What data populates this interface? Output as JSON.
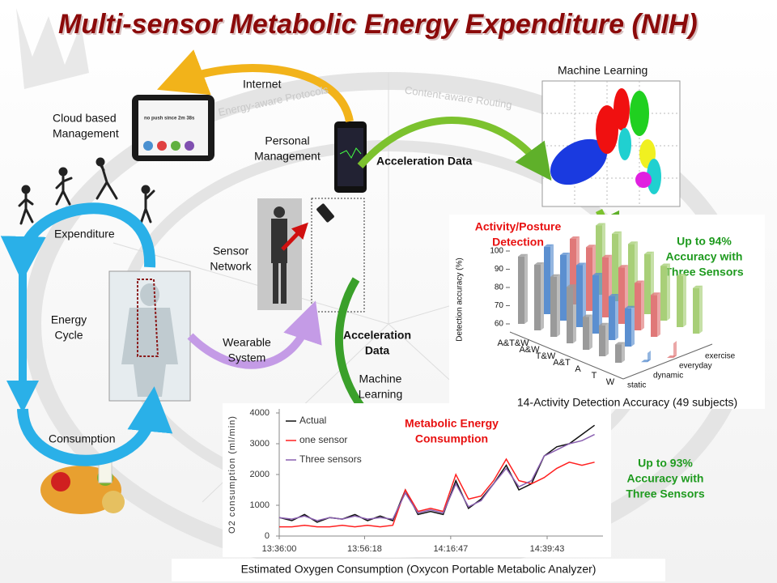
{
  "title": "Multi-sensor Metabolic Energy Expenditure (NIH)",
  "decor_texts": [
    "Energy-aware Protocols",
    "Content-aware Routing"
  ],
  "tablet_text": "no push since 2m 38s",
  "labels": [
    {
      "lines": [
        "Internet"
      ]
    },
    {
      "lines": [
        "Cloud based",
        "Management"
      ]
    },
    {
      "lines": [
        "Personal",
        "Management"
      ]
    },
    {
      "lines": [
        "Acceleration Data"
      ],
      "bold": true
    },
    {
      "lines": [
        "Machine Learning"
      ]
    },
    {
      "lines": [
        "Expenditure"
      ]
    },
    {
      "lines": [
        "Sensor",
        "Network"
      ]
    },
    {
      "lines": [
        "Energy",
        "Cycle"
      ]
    },
    {
      "lines": [
        "Wearable",
        "System"
      ]
    },
    {
      "lines": [
        "Acceleration",
        "Data"
      ],
      "bold": true
    },
    {
      "lines": [
        "Machine",
        "Learning"
      ]
    },
    {
      "lines": [
        "Consumption"
      ]
    },
    {
      "lines": [
        "Activity/Posture",
        "Detection"
      ],
      "bold": true,
      "color": "#e81010"
    },
    {
      "lines": [
        "Up to 94%",
        "Accuracy with",
        "Three Sensors"
      ],
      "bold": true,
      "color": "#1e9a1e"
    },
    {
      "lines": [
        "Metabolic Energy",
        "Consumption"
      ],
      "bold": true,
      "color": "#e81010"
    },
    {
      "lines": [
        "Up to 93%",
        "Accuracy with",
        "Three Sensors"
      ],
      "bold": true,
      "color": "#1e9a1e"
    },
    {
      "lines": [
        "Estimated Oxygen  Consumption (Oxycon  Portable  Metabolic Analyzer)"
      ]
    }
  ],
  "chart_data": [
    {
      "type": "bar3d",
      "title": "14-Activity Detection Accuracy (49 subjects)",
      "ylabel": "Detection accuracy (%)",
      "ylim": [
        60,
        100
      ],
      "yticks": [
        60,
        70,
        80,
        90,
        100
      ],
      "categories": [
        "A&T&W",
        "A&W",
        "T&W",
        "A&T",
        "A",
        "T",
        "W"
      ],
      "series": [
        {
          "name": "static",
          "color": "#9a9a9a",
          "values": [
            97,
            96,
            93,
            91,
            78,
            77,
            70
          ]
        },
        {
          "name": "dynamic",
          "color": "#5b8fd0",
          "values": [
            97,
            96,
            94,
            92,
            84,
            81,
            55
          ]
        },
        {
          "name": "everyday",
          "color": "#e07878",
          "values": [
            96,
            95,
            93,
            91,
            86,
            83,
            52
          ]
        },
        {
          "name": "exercise",
          "color": "#a8cf78",
          "values": [
            98,
            97,
            95,
            93,
            90,
            88,
            85
          ]
        }
      ]
    },
    {
      "type": "line",
      "ylabel": "O2 consumption (ml/min)",
      "ylim": [
        0,
        4000
      ],
      "yticks": [
        0,
        1000,
        2000,
        3000,
        4000
      ],
      "xlim": [
        "13:36:00",
        "14:53:00"
      ],
      "xticks": [
        "13:36:00",
        "13:56:18",
        "14:16:47",
        "14:39:43"
      ],
      "x": [
        "13:36:00",
        "13:39:00",
        "13:42:00",
        "13:45:00",
        "13:48:00",
        "13:51:00",
        "13:54:00",
        "13:57:00",
        "14:00:00",
        "14:03:00",
        "14:06:00",
        "14:09:00",
        "14:12:00",
        "14:15:00",
        "14:18:00",
        "14:21:00",
        "14:24:00",
        "14:27:00",
        "14:30:00",
        "14:33:00",
        "14:36:00",
        "14:39:00",
        "14:42:00",
        "14:45:00",
        "14:48:00",
        "14:51:00"
      ],
      "series": [
        {
          "name": "Actual",
          "color": "#111111",
          "values": [
            600,
            500,
            700,
            450,
            600,
            550,
            700,
            500,
            650,
            500,
            1500,
            700,
            800,
            700,
            1800,
            900,
            1200,
            1700,
            2300,
            1500,
            1700,
            2600,
            2900,
            3000,
            3300,
            3600
          ]
        },
        {
          "name": "one sensor",
          "color": "#ff2020",
          "values": [
            300,
            300,
            350,
            300,
            300,
            350,
            300,
            350,
            300,
            350,
            1500,
            800,
            900,
            800,
            2000,
            1200,
            1300,
            1800,
            2500,
            1800,
            1700,
            1900,
            2200,
            2400,
            2300,
            2400
          ]
        },
        {
          "name": "Three sensors",
          "color": "#8a60b0",
          "values": [
            600,
            550,
            650,
            500,
            600,
            550,
            650,
            550,
            600,
            550,
            1400,
            750,
            850,
            750,
            1700,
            950,
            1150,
            1700,
            2200,
            1600,
            1800,
            2600,
            2800,
            3000,
            3100,
            3300
          ]
        }
      ]
    }
  ]
}
